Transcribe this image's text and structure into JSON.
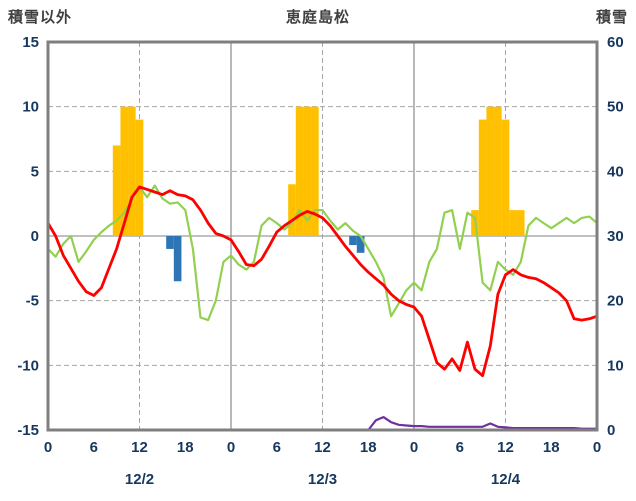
{
  "header": {
    "left_axis_title": "積雪以外",
    "chart_title": "恵庭島松",
    "right_axis_title": "積雪"
  },
  "chart_data": {
    "type": "line",
    "title": "恵庭島松",
    "grid": true,
    "legend": "none",
    "left_axis": {
      "label": "積雪以外",
      "min": -15,
      "max": 15,
      "ticks": [
        15,
        10,
        5,
        0,
        -5,
        -10,
        -15
      ]
    },
    "right_axis": {
      "label": "積雪",
      "min": 0,
      "max": 60,
      "ticks": [
        60,
        50,
        40,
        30,
        20,
        10,
        0
      ]
    },
    "x_axis": {
      "unit": "hour",
      "min_hour": 0,
      "max_hour": 72,
      "tick_interval": 6,
      "tick_labels": [
        "0",
        "6",
        "12",
        "18",
        "0",
        "6",
        "12",
        "18",
        "0",
        "6",
        "12",
        "18",
        "0"
      ],
      "date_labels": [
        {
          "label": "12/2",
          "hour": 12
        },
        {
          "label": "12/3",
          "hour": 36
        },
        {
          "label": "12/4",
          "hour": 60
        }
      ],
      "dashed_vlines_hours": [
        12,
        36,
        60
      ],
      "solid_vlines_hours": [
        24,
        48
      ]
    },
    "colors": {
      "yellow_bars": "#FFC000",
      "blue_bars": "#2E75B6",
      "red_line": "#FF0000",
      "green_line": "#92D050",
      "purple_line": "#7030A0",
      "border": "#7F7F7F",
      "gridline": "#A6A6A6",
      "tick_text": "#17375E"
    },
    "series": [
      {
        "name": "yellow_bars",
        "type": "bar",
        "axis": "left",
        "color": "#FFC000",
        "points": [
          {
            "hour": 9,
            "value": 7
          },
          {
            "hour": 10,
            "value": 10
          },
          {
            "hour": 11,
            "value": 10
          },
          {
            "hour": 12,
            "value": 9
          },
          {
            "hour": 32,
            "value": 4
          },
          {
            "hour": 33,
            "value": 10
          },
          {
            "hour": 34,
            "value": 10
          },
          {
            "hour": 35,
            "value": 10
          },
          {
            "hour": 56,
            "value": 2
          },
          {
            "hour": 57,
            "value": 9
          },
          {
            "hour": 58,
            "value": 10
          },
          {
            "hour": 59,
            "value": 10
          },
          {
            "hour": 60,
            "value": 9
          },
          {
            "hour": 61,
            "value": 2
          },
          {
            "hour": 62,
            "value": 2
          }
        ]
      },
      {
        "name": "blue_bars",
        "type": "bar",
        "axis": "left",
        "color": "#2E75B6",
        "points": [
          {
            "hour": 16,
            "value": -1
          },
          {
            "hour": 17,
            "value": -3.5
          },
          {
            "hour": 40,
            "value": -0.7
          },
          {
            "hour": 41,
            "value": -1.3
          }
        ]
      },
      {
        "name": "green_line",
        "type": "line",
        "axis": "left",
        "color": "#92D050",
        "width": 2.2,
        "y": [
          -1,
          -1.6,
          -0.6,
          0,
          -2,
          -1.2,
          -0.3,
          0.3,
          0.8,
          1.2,
          1.8,
          2.8,
          3.8,
          3,
          3.9,
          2.9,
          2.5,
          2.6,
          2,
          -1,
          -6.3,
          -6.5,
          -5,
          -2,
          -1.5,
          -2.2,
          -2.6,
          -2,
          0.8,
          1.4,
          1,
          0.5,
          1,
          2,
          1.2,
          2,
          2,
          1.2,
          0.5,
          1,
          0.4,
          0,
          -1,
          -2,
          -3.2,
          -6.2,
          -5.2,
          -4.2,
          -3.6,
          -4.2,
          -2,
          -1,
          1.8,
          2,
          -1,
          1.8,
          1.4,
          -3.6,
          -4.2,
          -2,
          -2.6,
          -3,
          -2,
          0.8,
          1.4,
          1,
          0.6,
          1,
          1.4,
          1,
          1.4,
          1.5,
          1
        ]
      },
      {
        "name": "red_line",
        "type": "line",
        "axis": "left",
        "color": "#FF0000",
        "width": 2.8,
        "y": [
          1,
          0,
          -1.5,
          -2.5,
          -3.5,
          -4.3,
          -4.6,
          -4,
          -2.5,
          -1,
          1,
          3,
          3.8,
          3.6,
          3.4,
          3.2,
          3.5,
          3.2,
          3.1,
          2.8,
          2,
          1,
          0.2,
          0,
          -0.3,
          -1.2,
          -2.2,
          -2.3,
          -1.8,
          -0.8,
          0.3,
          0.8,
          1.2,
          1.6,
          1.9,
          1.7,
          1.4,
          0.8,
          0,
          -0.8,
          -1.5,
          -2.2,
          -2.8,
          -3.3,
          -3.8,
          -4.5,
          -5,
          -5.3,
          -5.5,
          -6.2,
          -8,
          -9.8,
          -10.3,
          -9.5,
          -10.4,
          -8.2,
          -10.3,
          -10.8,
          -8.5,
          -4.5,
          -3,
          -2.6,
          -3,
          -3.2,
          -3.3,
          -3.6,
          -4,
          -4.4,
          -5,
          -6.4,
          -6.5,
          -6.4,
          -6.2
        ]
      },
      {
        "name": "purple_line",
        "type": "line",
        "axis": "right",
        "color": "#7030A0",
        "width": 2.2,
        "y": [
          0,
          0,
          0,
          0,
          0,
          0,
          0,
          0,
          0,
          0,
          0,
          0,
          0,
          0,
          0,
          0,
          0,
          0,
          0,
          0,
          0,
          0,
          0,
          0,
          0,
          0,
          0,
          0,
          0,
          0,
          0,
          0,
          0,
          0,
          0,
          0,
          0,
          0,
          0,
          0,
          0,
          0,
          0,
          1.5,
          2,
          1.2,
          0.8,
          0.7,
          0.6,
          0.6,
          0.5,
          0.5,
          0.5,
          0.5,
          0.5,
          0.5,
          0.5,
          0.5,
          1,
          0.5,
          0.4,
          0.3,
          0.3,
          0.3,
          0.3,
          0.3,
          0.3,
          0.3,
          0.3,
          0.3,
          0.2,
          0.2,
          0.2
        ]
      }
    ]
  }
}
